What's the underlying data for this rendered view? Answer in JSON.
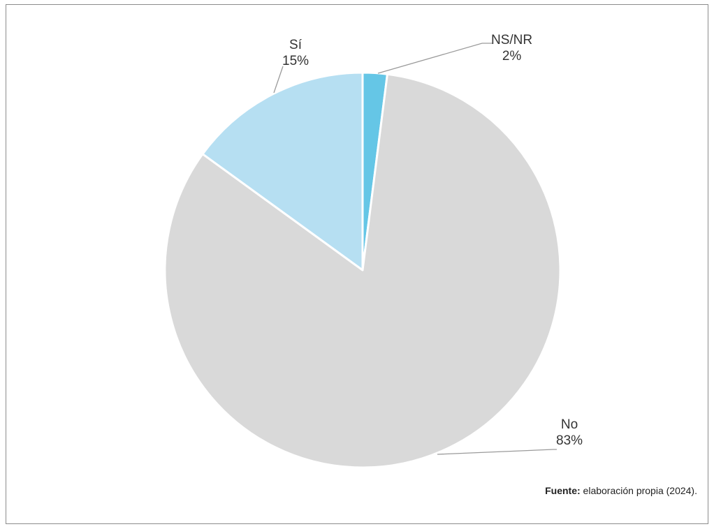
{
  "chart_data": {
    "type": "pie",
    "slices": [
      {
        "label": "NS/NR",
        "percent_label": "2%",
        "value": 2,
        "color": "#65c6e6"
      },
      {
        "label": "No",
        "percent_label": "83%",
        "value": 83,
        "color": "#d9d9d9"
      },
      {
        "label": "Sí",
        "percent_label": "15%",
        "value": 15,
        "color": "#b6dff2"
      }
    ],
    "start": "top",
    "direction": "clockwise"
  },
  "source": {
    "prefix": "Fuente:",
    "text": " elaboración propia (2024)."
  }
}
